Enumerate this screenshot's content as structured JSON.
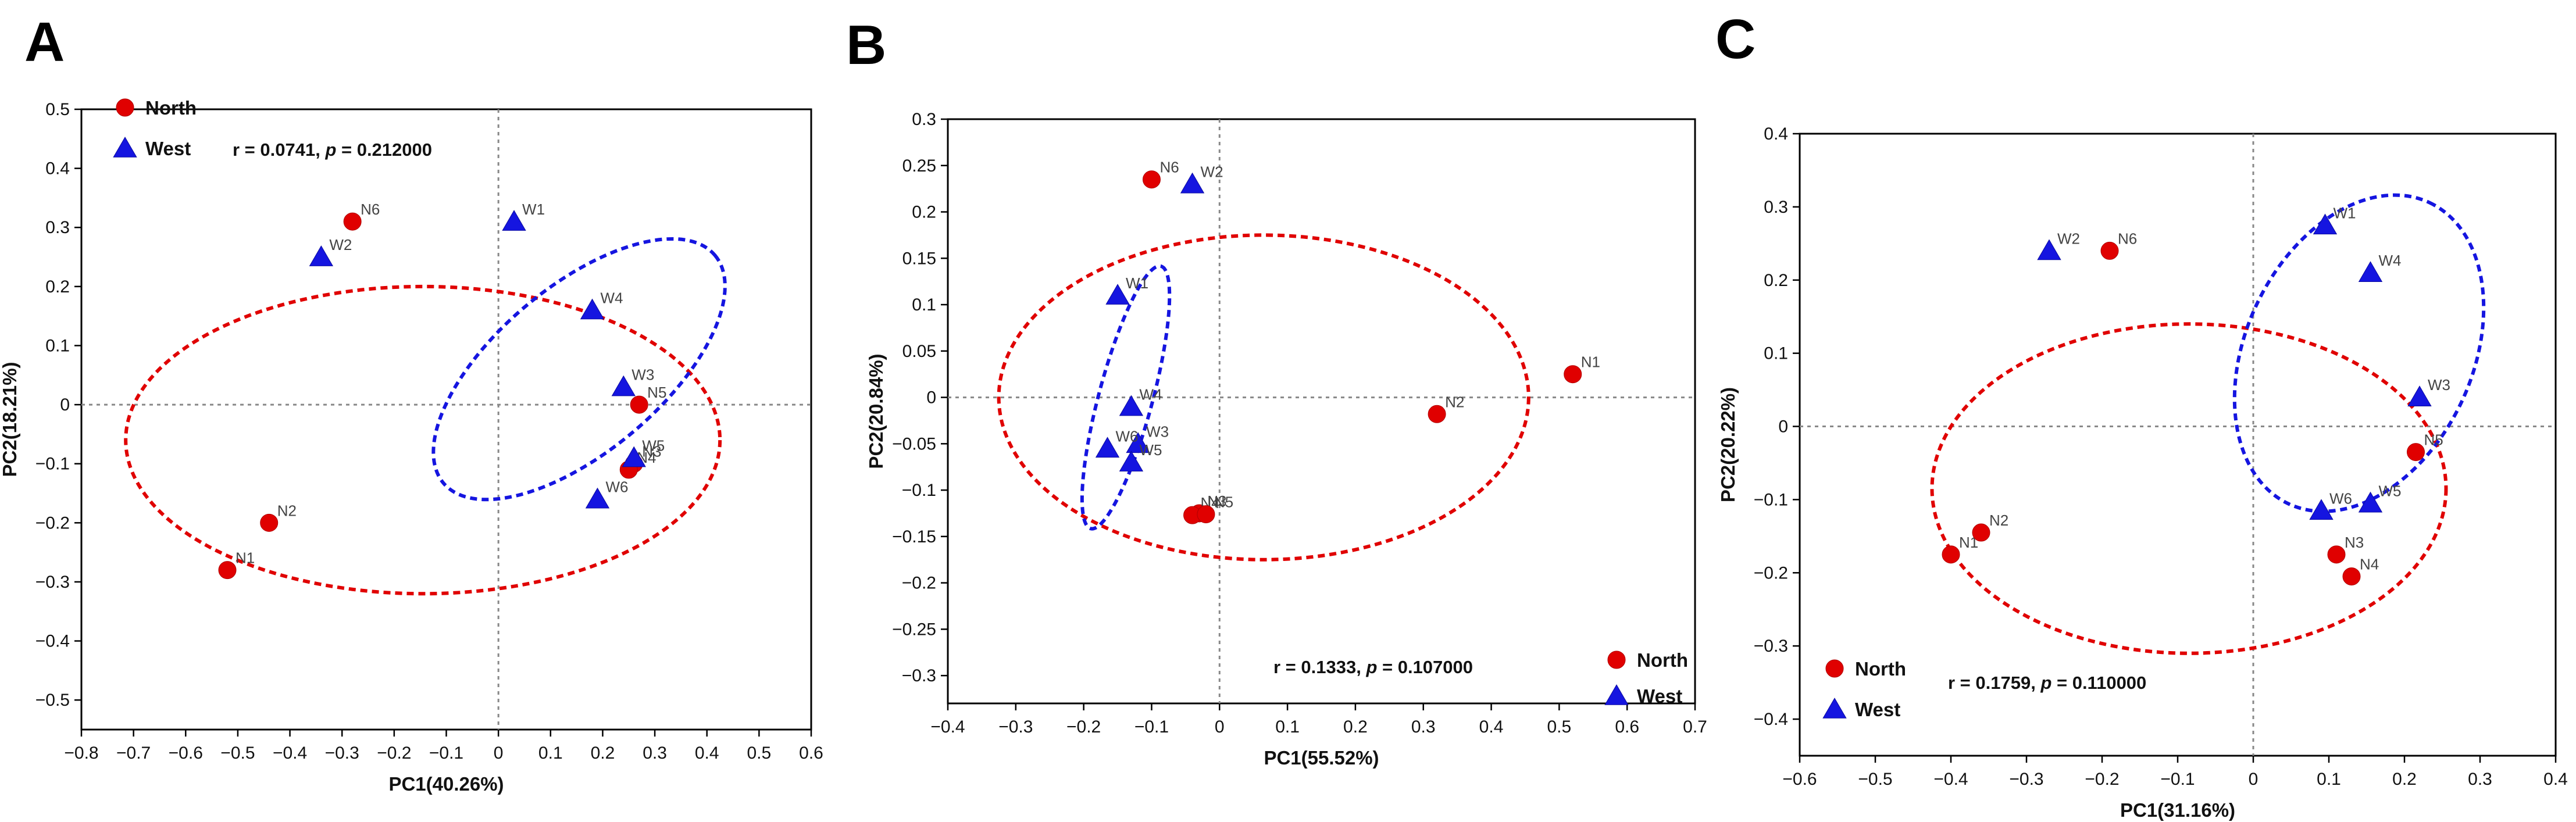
{
  "chart_data": [
    {
      "panel": "A",
      "type": "scatter",
      "xlabel": "PC1(40.26%)",
      "ylabel": "PC2(18.21%)",
      "xlim": [
        -0.8,
        0.6
      ],
      "ylim": [
        -0.55,
        0.5
      ],
      "xticks": [
        -0.8,
        -0.7,
        -0.6,
        -0.5,
        -0.4,
        -0.3,
        -0.2,
        -0.1,
        0,
        0.1,
        0.2,
        0.3,
        0.4,
        0.5,
        0.6
      ],
      "yticks": [
        -0.5,
        -0.4,
        -0.3,
        -0.2,
        -0.1,
        0,
        0.1,
        0.2,
        0.3,
        0.4,
        0.5
      ],
      "xtick_labels": [
        "−0.8",
        "−0.7",
        "−0.6",
        "−0.5",
        "−0.4",
        "−0.3",
        "−0.2",
        "−0.1",
        "0",
        "0.1",
        "0.2",
        "0.3",
        "0.4",
        "0.5",
        "0.6"
      ],
      "ytick_labels": [
        "−0.5",
        "−0.4",
        "−0.3",
        "−0.2",
        "−0.1",
        "0",
        "0.1",
        "0.2",
        "0.3",
        "0.4",
        "0.5"
      ],
      "legend_position": "top-left",
      "stat": {
        "r_text": "r = 0.0741, ",
        "p_symbol": "p",
        "p_text": " = 0.212000",
        "position": "top"
      },
      "series": [
        {
          "name": "North",
          "marker": "circle",
          "color": "#e00000",
          "points": [
            {
              "label": "N1",
              "x": -0.52,
              "y": -0.28
            },
            {
              "label": "N2",
              "x": -0.44,
              "y": -0.2
            },
            {
              "label": "N3",
              "x": 0.26,
              "y": -0.1
            },
            {
              "label": "N4",
              "x": 0.25,
              "y": -0.11
            },
            {
              "label": "N5",
              "x": 0.27,
              "y": 0.0
            },
            {
              "label": "N6",
              "x": -0.28,
              "y": 0.31
            }
          ]
        },
        {
          "name": "West",
          "marker": "triangle",
          "color": "#1515e0",
          "points": [
            {
              "label": "W1",
              "x": 0.03,
              "y": 0.31
            },
            {
              "label": "W2",
              "x": -0.34,
              "y": 0.25
            },
            {
              "label": "W3",
              "x": 0.24,
              "y": 0.03
            },
            {
              "label": "W4",
              "x": 0.18,
              "y": 0.16
            },
            {
              "label": "W5",
              "x": 0.26,
              "y": -0.09
            },
            {
              "label": "W6",
              "x": 0.19,
              "y": -0.16
            }
          ]
        }
      ],
      "ellipses": [
        {
          "series": "North",
          "cx": -0.145,
          "cy": -0.06,
          "rx": 0.57,
          "ry": 0.26,
          "angle": 0
        },
        {
          "series": "West",
          "cx": 0.155,
          "cy": 0.06,
          "rx": 0.34,
          "ry": 0.14,
          "angle": -40
        }
      ]
    },
    {
      "panel": "B",
      "type": "scatter",
      "xlabel": "PC1(55.52%)",
      "ylabel": "PC2(20.84%)",
      "xlim": [
        -0.4,
        0.7
      ],
      "ylim": [
        -0.33,
        0.3
      ],
      "xticks": [
        -0.4,
        -0.3,
        -0.2,
        -0.1,
        0,
        0.1,
        0.2,
        0.3,
        0.4,
        0.5,
        0.6,
        0.7
      ],
      "yticks": [
        -0.3,
        -0.25,
        -0.2,
        -0.15,
        -0.1,
        -0.05,
        0,
        0.05,
        0.1,
        0.15,
        0.2,
        0.25,
        0.3
      ],
      "xtick_labels": [
        "−0.4",
        "−0.3",
        "−0.2",
        "−0.1",
        "0",
        "0.1",
        "0.2",
        "0.3",
        "0.4",
        "0.5",
        "0.6",
        "0.7"
      ],
      "ytick_labels": [
        "−0.3",
        "−0.25",
        "−0.2",
        "−0.15",
        "−0.1",
        "−0.05",
        "0",
        "0.05",
        "0.1",
        "0.15",
        "0.2",
        "0.25",
        "0.3"
      ],
      "legend_position": "bottom-right",
      "stat": {
        "r_text": "r = 0.1333, ",
        "p_symbol": "p",
        "p_text": " = 0.107000",
        "position": "bottom"
      },
      "series": [
        {
          "name": "North",
          "marker": "circle",
          "color": "#e00000",
          "points": [
            {
              "label": "N1",
              "x": 0.52,
              "y": 0.025
            },
            {
              "label": "N2",
              "x": 0.32,
              "y": -0.018
            },
            {
              "label": "N3",
              "x": -0.03,
              "y": -0.125
            },
            {
              "label": "N4",
              "x": -0.04,
              "y": -0.127
            },
            {
              "label": "N5",
              "x": -0.02,
              "y": -0.126
            },
            {
              "label": "N6",
              "x": -0.1,
              "y": 0.235
            }
          ]
        },
        {
          "name": "West",
          "marker": "triangle",
          "color": "#1515e0",
          "points": [
            {
              "label": "W1",
              "x": -0.15,
              "y": 0.11
            },
            {
              "label": "W2",
              "x": -0.04,
              "y": 0.23
            },
            {
              "label": "W3",
              "x": -0.12,
              "y": -0.05
            },
            {
              "label": "W4",
              "x": -0.13,
              "y": -0.01
            },
            {
              "label": "W5",
              "x": -0.13,
              "y": -0.07
            },
            {
              "label": "W6",
              "x": -0.165,
              "y": -0.055
            }
          ]
        }
      ],
      "ellipses": [
        {
          "series": "North",
          "cx": 0.065,
          "cy": 0.0,
          "rx": 0.39,
          "ry": 0.175,
          "angle": 0
        },
        {
          "series": "West",
          "cx": -0.138,
          "cy": 0.0,
          "rx": 0.2,
          "ry": 0.029,
          "angle": -75
        }
      ]
    },
    {
      "panel": "C",
      "type": "scatter",
      "xlabel": "PC1(31.16%)",
      "ylabel": "PC2(20.22%)",
      "xlim": [
        -0.6,
        0.4
      ],
      "ylim": [
        -0.45,
        0.4
      ],
      "xticks": [
        -0.6,
        -0.5,
        -0.4,
        -0.3,
        -0.2,
        -0.1,
        0,
        0.1,
        0.2,
        0.3,
        0.4
      ],
      "yticks": [
        -0.4,
        -0.3,
        -0.2,
        -0.1,
        0,
        0.1,
        0.2,
        0.3,
        0.4
      ],
      "xtick_labels": [
        "−0.6",
        "−0.5",
        "−0.4",
        "−0.3",
        "−0.2",
        "−0.1",
        "0",
        "0.1",
        "0.2",
        "0.3",
        "0.4"
      ],
      "ytick_labels": [
        "−0.4",
        "−0.3",
        "−0.2",
        "−0.1",
        "0",
        "0.1",
        "0.2",
        "0.3",
        "0.4"
      ],
      "legend_position": "bottom-left",
      "stat": {
        "r_text": "r = 0.1759, ",
        "p_symbol": "p",
        "p_text": " = 0.110000",
        "position": "bottom"
      },
      "series": [
        {
          "name": "North",
          "marker": "circle",
          "color": "#e00000",
          "points": [
            {
              "label": "N1",
              "x": -0.4,
              "y": -0.175
            },
            {
              "label": "N2",
              "x": -0.36,
              "y": -0.145
            },
            {
              "label": "N3",
              "x": 0.11,
              "y": -0.175
            },
            {
              "label": "N4",
              "x": 0.13,
              "y": -0.205
            },
            {
              "label": "N5",
              "x": 0.215,
              "y": -0.035
            },
            {
              "label": "N6",
              "x": -0.19,
              "y": 0.24
            }
          ]
        },
        {
          "name": "West",
          "marker": "triangle",
          "color": "#1515e0",
          "points": [
            {
              "label": "W1",
              "x": 0.095,
              "y": 0.275
            },
            {
              "label": "W2",
              "x": -0.27,
              "y": 0.24
            },
            {
              "label": "W3",
              "x": 0.22,
              "y": 0.04
            },
            {
              "label": "W4",
              "x": 0.155,
              "y": 0.21
            },
            {
              "label": "W5",
              "x": 0.155,
              "y": -0.105
            },
            {
              "label": "W6",
              "x": 0.09,
              "y": -0.115
            }
          ]
        }
      ],
      "ellipses": [
        {
          "series": "North",
          "cx": -0.085,
          "cy": -0.085,
          "rx": 0.34,
          "ry": 0.225,
          "angle": 0
        },
        {
          "series": "West",
          "cx": 0.14,
          "cy": 0.1,
          "rx": 0.22,
          "ry": 0.155,
          "angle": -65
        }
      ]
    }
  ]
}
